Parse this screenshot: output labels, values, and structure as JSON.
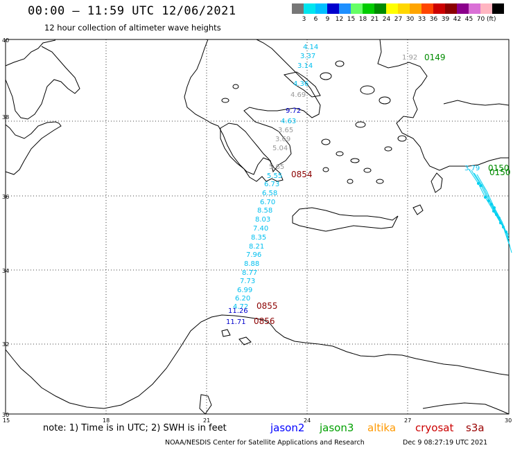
{
  "title": "00:00 – 11:59 UTC 12/06/2021",
  "subtitle": "12 hour collection of altimeter wave heights",
  "scale": {
    "unit": "(ft)",
    "swatches": [
      {
        "color": "#777777",
        "label": ""
      },
      {
        "color": "#00e5ee",
        "label": "3"
      },
      {
        "color": "#00bfff",
        "label": "6"
      },
      {
        "color": "#0000cd",
        "label": "9"
      },
      {
        "color": "#1e90ff",
        "label": "12"
      },
      {
        "color": "#66ff66",
        "label": "15"
      },
      {
        "color": "#00cc00",
        "label": "18"
      },
      {
        "color": "#008b00",
        "label": "21"
      },
      {
        "color": "#ffff00",
        "label": "24"
      },
      {
        "color": "#ffd700",
        "label": "27"
      },
      {
        "color": "#ffa500",
        "label": "30"
      },
      {
        "color": "#ff4500",
        "label": "33"
      },
      {
        "color": "#cc0000",
        "label": "36"
      },
      {
        "color": "#8b0000",
        "label": "39"
      },
      {
        "color": "#8b008b",
        "label": "42"
      },
      {
        "color": "#da70d6",
        "label": "45"
      },
      {
        "color": "#ffb6c1",
        "label": "70"
      },
      {
        "color": "#000000",
        "label": ""
      }
    ]
  },
  "axes": {
    "lat_labels": [
      "40",
      "38",
      "36",
      "34",
      "32",
      "30"
    ],
    "lon_labels": [
      "15",
      "18",
      "21",
      "24",
      "27",
      "30"
    ]
  },
  "track_values": [
    "4.14",
    "3.37",
    "3.14",
    "4.36",
    "4.69",
    "9.72",
    "4.63",
    "3.65",
    "3.69",
    "5.04",
    "5.65",
    "5.55",
    "6.73",
    "6.58",
    "6.70",
    "8.58",
    "8.03",
    "7.40",
    "8.35",
    "8.21",
    "7.96",
    "8.88",
    "8.77",
    "7.73",
    "6.99",
    "6.20",
    "4.72",
    "11.26",
    "11.71",
    "1.92",
    "3.79"
  ],
  "time_labels": [
    "0149",
    "0854",
    "0855",
    "0856",
    "0150",
    "0150"
  ],
  "note": "note: 1) Time is in UTC; 2) SWH is in feet",
  "legend": [
    {
      "name": "jason2",
      "color": "#0000ff"
    },
    {
      "name": "jason3",
      "color": "#00a000"
    },
    {
      "name": "altika",
      "color": "#ff9900"
    },
    {
      "name": "cryosat",
      "color": "#cc0000"
    },
    {
      "name": "s3a",
      "color": "#990000"
    }
  ],
  "footer": {
    "org": "NOAA/NESDIS Center for Satellite Applications and Research",
    "timestamp": "Dec  9 08:27:19 UTC 2021"
  }
}
